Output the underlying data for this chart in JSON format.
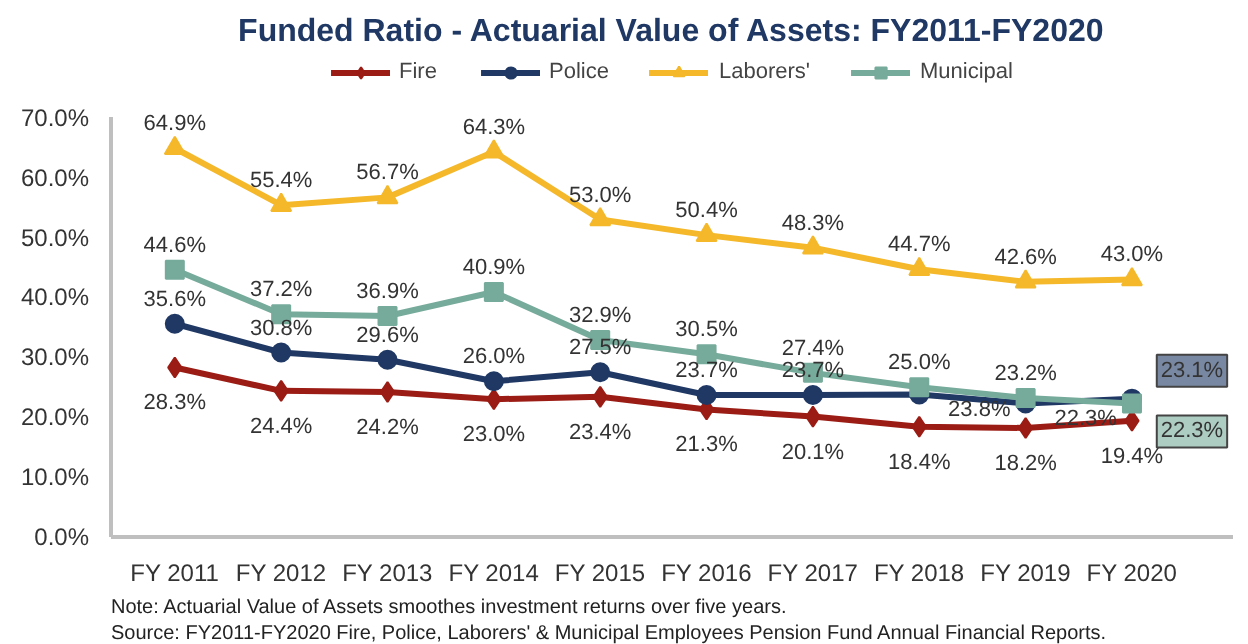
{
  "chart_data": {
    "type": "line",
    "title": "Funded Ratio - Actuarial Value of Assets: FY2011-FY2020",
    "categories": [
      "FY 2011",
      "FY 2012",
      "FY 2013",
      "FY 2014",
      "FY 2015",
      "FY 2016",
      "FY 2017",
      "FY 2018",
      "FY 2019",
      "FY 2020"
    ],
    "series": [
      {
        "name": "Fire",
        "color": "#9b1c14",
        "marker": "diamond",
        "values": [
          28.3,
          24.4,
          24.2,
          23.0,
          23.4,
          21.3,
          20.1,
          18.4,
          18.2,
          19.4
        ],
        "value_labels": [
          "28.3%",
          "24.4%",
          "24.2%",
          "23.0%",
          "23.4%",
          "21.3%",
          "20.1%",
          "18.4%",
          "18.2%",
          "19.4%"
        ]
      },
      {
        "name": "Police",
        "color": "#1f3864",
        "marker": "circle",
        "values": [
          35.6,
          30.8,
          29.6,
          26.0,
          27.5,
          23.7,
          23.7,
          23.8,
          22.3,
          23.1
        ],
        "value_labels": [
          "35.6%",
          "30.8%",
          "29.6%",
          "26.0%",
          "27.5%",
          "23.7%",
          "23.7%",
          "23.8%",
          "22.3%",
          "23.1%"
        ]
      },
      {
        "name": "Laborers'",
        "color": "#f4b82a",
        "marker": "triangle",
        "values": [
          64.9,
          55.4,
          56.7,
          64.3,
          53.0,
          50.4,
          48.3,
          44.7,
          42.6,
          43.0
        ],
        "value_labels": [
          "64.9%",
          "55.4%",
          "56.7%",
          "64.3%",
          "53.0%",
          "50.4%",
          "48.3%",
          "44.7%",
          "42.6%",
          "43.0%"
        ]
      },
      {
        "name": "Municipal",
        "color": "#76aa9a",
        "marker": "square",
        "values": [
          44.6,
          37.2,
          36.9,
          40.9,
          32.9,
          30.5,
          27.4,
          25.0,
          23.2,
          22.3
        ],
        "value_labels": [
          "44.6%",
          "37.2%",
          "36.9%",
          "40.9%",
          "32.9%",
          "30.5%",
          "27.4%",
          "25.0%",
          "23.2%",
          "22.3%"
        ]
      }
    ],
    "ylim": [
      0,
      70
    ],
    "yticks": [
      {
        "value": 0,
        "label": "0.0%"
      },
      {
        "value": 10,
        "label": "10.0%"
      },
      {
        "value": 20,
        "label": "20.0%"
      },
      {
        "value": 30,
        "label": "30.0%"
      },
      {
        "value": 40,
        "label": "40.0%"
      },
      {
        "value": 50,
        "label": "50.0%"
      },
      {
        "value": 60,
        "label": "60.0%"
      },
      {
        "value": 70,
        "label": "70.0%"
      }
    ],
    "grid": false,
    "legend": "top",
    "line_style": "solid",
    "annotations": [
      "Note: Actuarial Value of Assets smoothes investment returns over five years.",
      "Source: FY2011-FY2020 Fire, Police, Laborers' & Municipal Employees Pension Fund Annual Financial Reports."
    ]
  }
}
